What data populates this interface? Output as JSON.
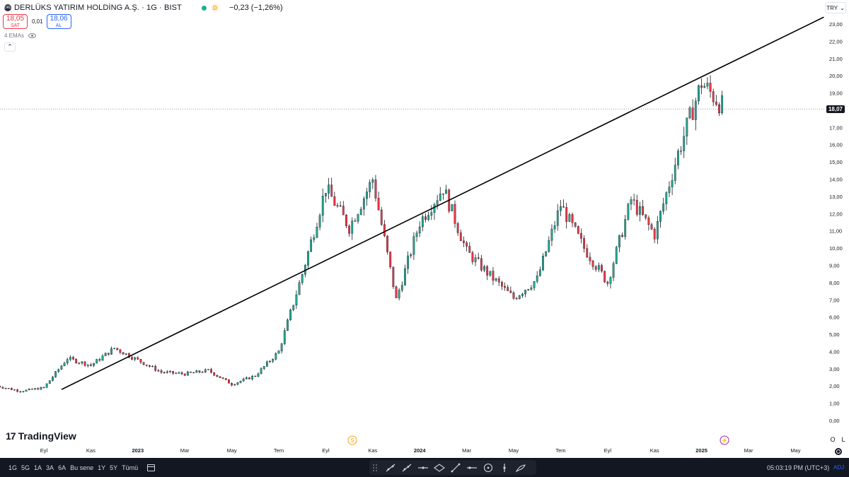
{
  "header": {
    "symbol_logo": "DRL",
    "title": "DERLÜKS YATIRIM HOLDİNG A.Ş. · 1G · BIST",
    "session_badge": "D",
    "change": "−0,23 (−1,26%)",
    "sell_price": "18,05",
    "sell_label": "SAT",
    "spread": "0,01",
    "buy_price": "18,06",
    "buy_label": "AL",
    "indicator_label": "4 EMAs"
  },
  "axis": {
    "currency": "TRY",
    "last_price_tag": "18,07",
    "y_ticks": [
      "23,00",
      "22,00",
      "21,00",
      "20,00",
      "19,00",
      "18,00",
      "17,00",
      "16,00",
      "15,00",
      "14,00",
      "13,00",
      "12,00",
      "11,00",
      "10,00",
      "9,00",
      "8,00",
      "7,00",
      "6,00",
      "5,00",
      "4,00",
      "3,00",
      "2,00",
      "1,00",
      "0,00"
    ],
    "x_ticks": [
      "Eyl",
      "Kas",
      "2023",
      "Mar",
      "May",
      "Tem",
      "Eyl",
      "Kas",
      "2024",
      "Mar",
      "May",
      "Tem",
      "Eyl",
      "Kas",
      "2025",
      "Mar",
      "May"
    ],
    "x_ticks_bold": [
      "2023",
      "2024",
      "2025"
    ],
    "log_toggle": "L",
    "percent_toggle": "O"
  },
  "colors": {
    "up": "#22ab94",
    "down": "#f23645",
    "candle_body": "#131722",
    "trendline": "#000000",
    "event_dividend": "#f7a21b",
    "event_split": "#9c27b0"
  },
  "events": {
    "dividend_icon": "S"
  },
  "brand": {
    "name": "TradingView"
  },
  "toolbar": {
    "ranges": [
      "1G",
      "5G",
      "1A",
      "3A",
      "6A",
      "Bu sene",
      "1Y",
      "5Y",
      "Tümü"
    ],
    "tools": [
      "trend-line-icon",
      "ray-icon",
      "horizontal-line-icon",
      "ellipse-icon",
      "segment-icon",
      "circle-icon",
      "vertical-line-icon",
      "brush-icon"
    ],
    "clock": "05:03:19 PM (UTC+3)",
    "adj": "ADJ"
  },
  "chart_data": {
    "type": "candlestick",
    "y_range": [
      0,
      23.5
    ],
    "series": [
      {
        "date": "2022-07",
        "close": 2.0
      },
      {
        "date": "2022-08",
        "close": 1.7
      },
      {
        "date": "2022-09",
        "close": 1.9
      },
      {
        "date": "2022-10",
        "close": 3.6
      },
      {
        "date": "2022-11",
        "close": 3.2
      },
      {
        "date": "2022-12",
        "close": 4.2
      },
      {
        "date": "2023-01",
        "close": 3.5
      },
      {
        "date": "2023-02",
        "close": 2.8
      },
      {
        "date": "2023-03",
        "close": 2.7
      },
      {
        "date": "2023-04",
        "close": 2.9
      },
      {
        "date": "2023-05",
        "close": 2.1
      },
      {
        "date": "2023-06",
        "close": 2.6
      },
      {
        "date": "2023-07",
        "close": 4.0
      },
      {
        "date": "2023-08",
        "close": 8.5
      },
      {
        "date": "2023-09",
        "close": 13.5
      },
      {
        "date": "2023-10",
        "close": 11.2
      },
      {
        "date": "2023-11",
        "close": 14.0
      },
      {
        "date": "2023-12",
        "close": 7.0
      },
      {
        "date": "2024-01",
        "close": 11.5
      },
      {
        "date": "2024-02",
        "close": 13.5
      },
      {
        "date": "2024-03",
        "close": 9.8
      },
      {
        "date": "2024-04",
        "close": 8.4
      },
      {
        "date": "2024-05",
        "close": 7.1
      },
      {
        "date": "2024-06",
        "close": 8.2
      },
      {
        "date": "2024-07",
        "close": 12.5
      },
      {
        "date": "2024-08",
        "close": 10.0
      },
      {
        "date": "2024-09",
        "close": 8.0
      },
      {
        "date": "2024-10",
        "close": 12.8
      },
      {
        "date": "2024-11",
        "close": 10.8
      },
      {
        "date": "2024-12",
        "close": 15.5
      },
      {
        "date": "2025-01",
        "close": 19.6
      },
      {
        "date": "2025-02",
        "close": 18.07
      }
    ],
    "trendline": {
      "start": {
        "date": "2022-09",
        "price": 1.8
      },
      "end": {
        "date": "2025-05",
        "price": 23.4
      }
    },
    "last_price": 18.07
  }
}
